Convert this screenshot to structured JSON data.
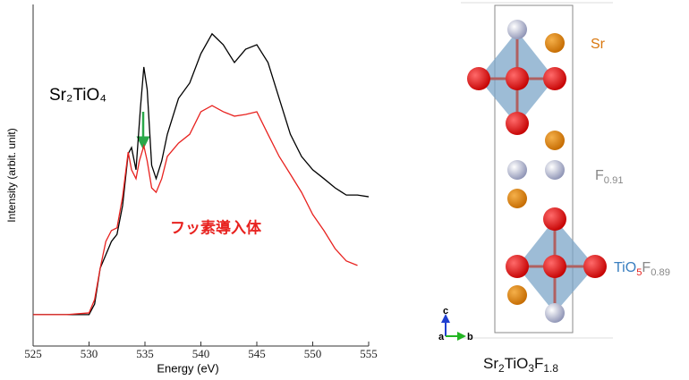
{
  "chart_data": {
    "type": "line",
    "xlabel": "Energy (eV)",
    "ylabel": "Intensity (arbit. unit)",
    "xlim": [
      525,
      555
    ],
    "xticks": [
      525,
      530,
      535,
      540,
      545,
      550,
      555
    ],
    "ylim": [
      0,
      10
    ],
    "series": [
      {
        "name": "Sr₂TiO₄",
        "color": "#000000",
        "x": [
          525,
          528,
          530,
          530.5,
          531,
          531.5,
          532,
          532.5,
          533,
          533.5,
          533.8,
          534.2,
          534.6,
          534.9,
          535.2,
          535.6,
          536,
          536.5,
          537,
          538,
          539,
          540,
          541,
          542,
          543,
          544,
          545,
          546,
          547,
          548,
          549,
          550,
          551,
          552,
          553,
          554,
          555
        ],
        "values": [
          0.92,
          0.92,
          0.92,
          1.23,
          2.28,
          2.67,
          3.06,
          3.27,
          4.11,
          5.63,
          5.81,
          5.16,
          6.99,
          8.17,
          7.51,
          5.29,
          4.9,
          5.42,
          6.2,
          7.25,
          7.7,
          8.56,
          9.14,
          8.82,
          8.3,
          8.69,
          8.82,
          8.3,
          7.25,
          6.2,
          5.55,
          5.16,
          4.9,
          4.63,
          4.42,
          4.42,
          4.37
        ]
      },
      {
        "name": "フッ素導入体",
        "color": "#e8221f",
        "x": [
          525,
          528,
          530,
          530.5,
          531,
          531.5,
          532,
          532.5,
          533,
          533.5,
          533.8,
          534.2,
          534.5,
          534.9,
          535.2,
          535.6,
          536,
          536.5,
          537,
          538,
          539,
          540,
          541,
          542,
          543,
          544,
          545,
          546,
          547,
          548,
          549,
          550,
          551,
          552,
          553,
          554
        ],
        "values": [
          0.92,
          0.92,
          0.97,
          1.36,
          2.28,
          3.06,
          3.38,
          3.46,
          4.37,
          5.68,
          5.16,
          4.9,
          5.42,
          5.86,
          5.42,
          4.63,
          4.5,
          4.9,
          5.55,
          5.94,
          6.2,
          6.86,
          7.04,
          6.86,
          6.73,
          6.78,
          6.86,
          6.2,
          5.55,
          5.03,
          4.5,
          3.85,
          3.38,
          2.85,
          2.49,
          2.36
        ]
      }
    ]
  },
  "diagram": {
    "sr_label": "Sr",
    "f_label": [
      "F",
      "0.91"
    ],
    "octahedron_label": [
      "TiO",
      "5",
      "F",
      "0.89"
    ],
    "formula": [
      "Sr",
      "2",
      "TiO",
      "3",
      "F",
      "1.8"
    ],
    "axes": {
      "c": "c",
      "a": "a",
      "b": "b"
    }
  }
}
